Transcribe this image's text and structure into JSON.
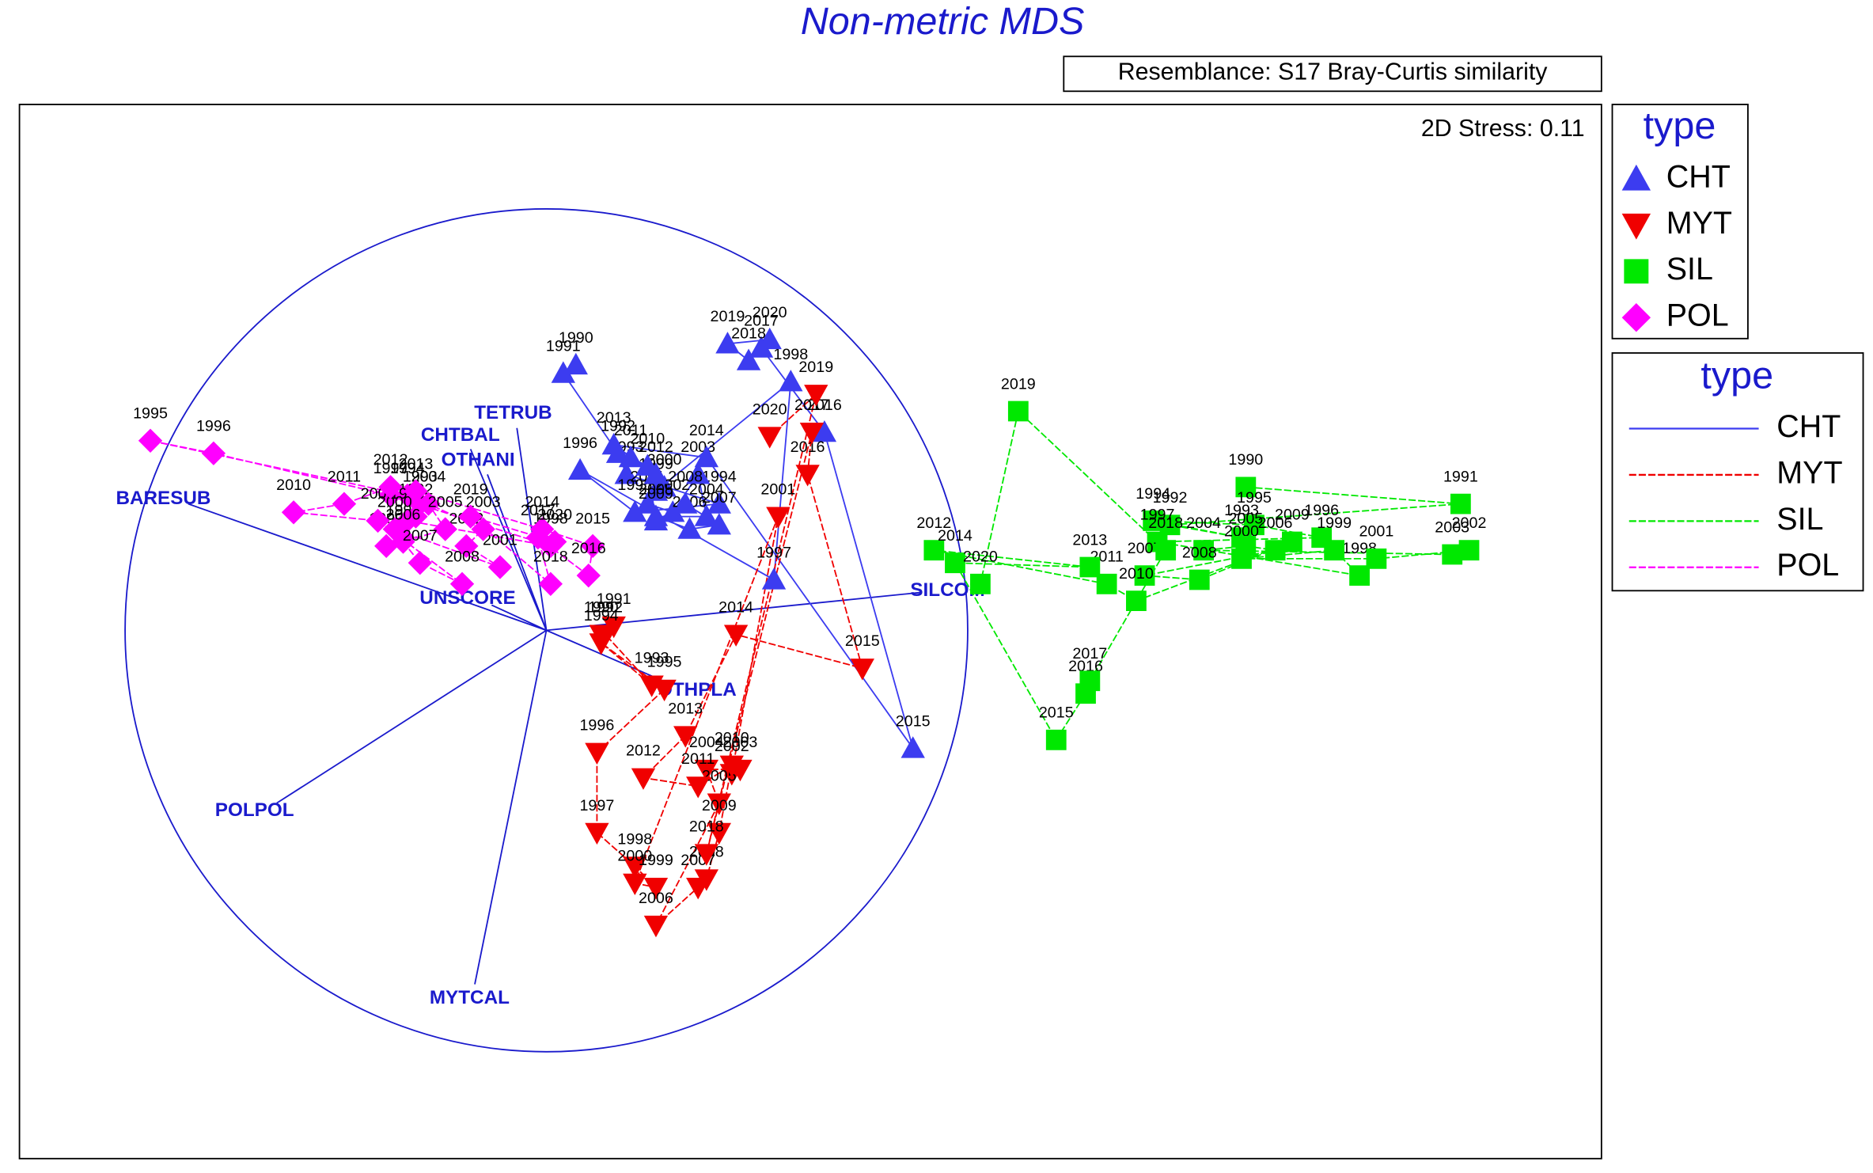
{
  "chart_data": {
    "type": "scatter",
    "title": "Non-metric MDS",
    "subtitle": "Resemblance: S17 Bray-Curtis similarity",
    "annotation": "2D Stress: 0.11",
    "legend_title": "type",
    "series": [
      {
        "name": "CHT",
        "color": "#3c3cf0",
        "marker": "triangle-up",
        "line_style": "solid",
        "labels": [
          1990,
          1991,
          1992,
          1993,
          1994,
          1995,
          1996,
          1997,
          1998,
          1999,
          2000,
          2001,
          2002,
          2003,
          2004,
          2005,
          2006,
          2007,
          2008,
          2009,
          2010,
          2011,
          2012,
          2013,
          2014,
          2015,
          2016,
          2017,
          2018,
          2019,
          2020
        ],
        "x": [
          0.07,
          0.04,
          0.17,
          0.19,
          0.41,
          0.21,
          0.08,
          0.54,
          0.58,
          0.26,
          0.28,
          0.24,
          0.3,
          0.36,
          0.38,
          0.26,
          0.34,
          0.41,
          0.33,
          0.26,
          0.24,
          0.2,
          0.26,
          0.16,
          0.38,
          0.87,
          0.66,
          0.51,
          0.48,
          0.43,
          0.53
        ],
        "y": [
          0.63,
          0.61,
          0.42,
          0.37,
          0.3,
          0.28,
          0.38,
          0.12,
          0.59,
          0.33,
          0.34,
          0.3,
          0.28,
          0.37,
          0.27,
          0.27,
          0.24,
          0.25,
          0.3,
          0.26,
          0.39,
          0.41,
          0.37,
          0.44,
          0.41,
          -0.28,
          0.47,
          0.67,
          0.64,
          0.68,
          0.69
        ]
      },
      {
        "name": "MYT",
        "color": "#f00000",
        "marker": "triangle-down",
        "line_style": "dashed",
        "labels": [
          1990,
          1991,
          1992,
          1993,
          1994,
          1995,
          1996,
          1997,
          1998,
          1999,
          2000,
          2001,
          2002,
          2003,
          2004,
          2005,
          2006,
          2007,
          2008,
          2009,
          2010,
          2011,
          2012,
          2013,
          2014,
          2015,
          2016,
          2017,
          2018,
          2019,
          2020
        ],
        "x": [
          0.13,
          0.16,
          0.14,
          0.25,
          0.13,
          0.28,
          0.12,
          0.12,
          0.21,
          0.26,
          0.21,
          0.55,
          0.44,
          0.46,
          0.38,
          0.41,
          0.26,
          0.36,
          0.38,
          0.41,
          0.44,
          0.36,
          0.23,
          0.33,
          0.45,
          0.75,
          0.62,
          0.63,
          0.38,
          0.64,
          0.53
        ],
        "y": [
          -0.01,
          0.01,
          -0.01,
          -0.13,
          -0.03,
          -0.14,
          -0.29,
          -0.48,
          -0.56,
          -0.61,
          -0.6,
          0.27,
          -0.34,
          -0.33,
          -0.33,
          -0.41,
          -0.7,
          -0.61,
          -0.59,
          -0.48,
          -0.32,
          -0.37,
          -0.35,
          -0.25,
          -0.01,
          -0.09,
          0.37,
          0.47,
          -0.53,
          0.56,
          0.46
        ]
      },
      {
        "name": "SIL",
        "color": "#00e800",
        "marker": "square",
        "line_style": "dashed",
        "labels": [
          1990,
          1991,
          1992,
          1993,
          1994,
          1995,
          1996,
          1997,
          1998,
          1999,
          2000,
          2001,
          2002,
          2003,
          2004,
          2005,
          2006,
          2007,
          2008,
          2009,
          2010,
          2011,
          2012,
          2013,
          2014,
          2015,
          2016,
          2017,
          2018,
          2019,
          2020
        ],
        "x": [
          1.66,
          2.17,
          1.48,
          1.65,
          1.44,
          1.68,
          1.84,
          1.45,
          1.93,
          1.87,
          1.65,
          1.97,
          2.19,
          2.15,
          1.56,
          1.66,
          1.73,
          1.42,
          1.55,
          1.77,
          1.4,
          1.33,
          0.92,
          1.29,
          0.97,
          1.21,
          1.28,
          1.29,
          1.47,
          1.12,
          1.03
        ],
        "y": [
          0.34,
          0.3,
          0.25,
          0.22,
          0.26,
          0.25,
          0.22,
          0.21,
          0.13,
          0.19,
          0.17,
          0.17,
          0.19,
          0.18,
          0.19,
          0.2,
          0.19,
          0.13,
          0.12,
          0.21,
          0.07,
          0.11,
          0.19,
          0.15,
          0.16,
          -0.26,
          -0.15,
          -0.12,
          0.19,
          0.52,
          0.11
        ]
      },
      {
        "name": "POL",
        "color": "#ff00ff",
        "marker": "diamond",
        "line_style": "dashed",
        "labels": [
          1990,
          1991,
          1992,
          1993,
          1994,
          1995,
          1996,
          1997,
          1998,
          1999,
          2000,
          2001,
          2002,
          2003,
          2004,
          2005,
          2006,
          2007,
          2008,
          2009,
          2010,
          2011,
          2012,
          2013,
          2014,
          2015,
          2016,
          2017,
          2018,
          2019,
          2020
        ],
        "x": [
          -0.38,
          -0.34,
          -0.31,
          -0.3,
          -0.33,
          -0.94,
          -0.79,
          -0.37,
          0.01,
          -0.33,
          -0.36,
          -0.11,
          -0.19,
          -0.15,
          -0.28,
          -0.24,
          -0.34,
          -0.3,
          -0.2,
          -0.4,
          -0.6,
          -0.48,
          -0.37,
          -0.31,
          -0.01,
          0.11,
          0.1,
          -0.02,
          0.01,
          -0.18,
          0.02
        ],
        "y": [
          0.2,
          0.22,
          0.27,
          0.3,
          0.32,
          0.45,
          0.42,
          0.32,
          0.2,
          0.26,
          0.24,
          0.15,
          0.2,
          0.24,
          0.3,
          0.24,
          0.21,
          0.16,
          0.11,
          0.26,
          0.28,
          0.3,
          0.34,
          0.33,
          0.24,
          0.2,
          0.13,
          0.22,
          0.11,
          0.27,
          0.21
        ]
      }
    ],
    "vectors": [
      {
        "name": "BARESUB",
        "x": -0.85,
        "y": 0.3
      },
      {
        "name": "TETRUB",
        "x": -0.07,
        "y": 0.48
      },
      {
        "name": "CHTBAL",
        "x": -0.18,
        "y": 0.43
      },
      {
        "name": "OTHANI",
        "x": -0.14,
        "y": 0.37
      },
      {
        "name": "UNSCORE",
        "x": -0.13,
        "y": 0.06
      },
      {
        "name": "SILCOM",
        "x": 0.89,
        "y": 0.09
      },
      {
        "name": "OTHPLA",
        "x": 0.3,
        "y": -0.13
      },
      {
        "name": "POLPOL",
        "x": -0.64,
        "y": -0.41
      },
      {
        "name": "MYTCAL",
        "x": -0.17,
        "y": -0.84
      }
    ],
    "vector_color": "#1a1acc"
  }
}
